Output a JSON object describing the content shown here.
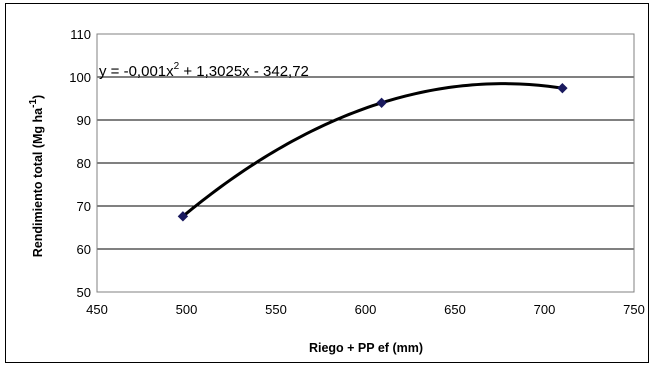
{
  "chart_data": {
    "type": "scatter",
    "xlabel": "Riego + PP ef (mm)",
    "ylabel": {
      "main": "Rendimiento total (Mg ha",
      "superscript": "-1",
      "close": ")"
    },
    "xlim": [
      450,
      750
    ],
    "ylim": [
      50,
      110
    ],
    "x_ticks": [
      "450",
      "500",
      "550",
      "600",
      "650",
      "700",
      "750"
    ],
    "y_ticks": [
      "50",
      "60",
      "70",
      "80",
      "90",
      "100",
      "110"
    ],
    "grid": "horizontal",
    "series": [
      {
        "points": [
          {
            "x": 498,
            "y": 67.6
          },
          {
            "x": 609,
            "y": 94.0
          },
          {
            "x": 710,
            "y": 97.4
          }
        ],
        "marker": "diamond",
        "color": "#1a1a5e",
        "trendline": "polynomial-2"
      }
    ],
    "equation": {
      "prefix": "y = -0,001x",
      "exponent": "2",
      "suffix": " + 1,3025x - 342,72"
    }
  }
}
